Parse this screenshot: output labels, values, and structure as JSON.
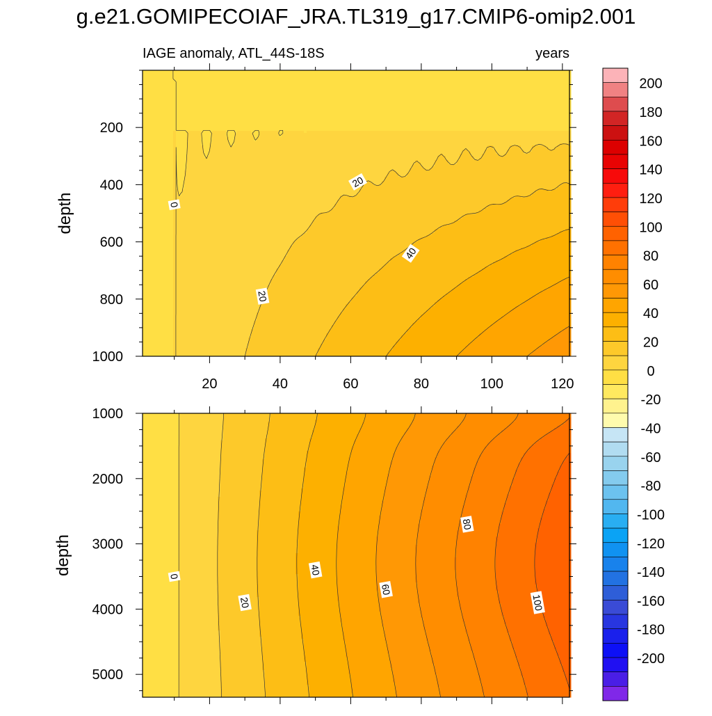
{
  "figure_title": "g.e21.GOMIPECOIAF_JRA.TL319_g17.CMIP6-omip2.001",
  "chart_data": [
    {
      "type": "contour",
      "panel": "upper",
      "left_label": "IAGE anomaly, ATL_44S-18S",
      "right_label": "years",
      "ylabel": "depth",
      "xlabel": "",
      "xlim": [
        1,
        122
      ],
      "ylim": [
        1000,
        0
      ],
      "y_inverted": true,
      "xticks": [
        20,
        40,
        60,
        80,
        100,
        120
      ],
      "yticks": [
        200,
        400,
        600,
        800,
        1000
      ],
      "contour_interval": 10,
      "contour_labels": [
        {
          "text": "0",
          "x": 10,
          "y": 470
        },
        {
          "text": "20",
          "x": 35,
          "y": 790
        },
        {
          "text": "20",
          "x": 62,
          "y": 390
        },
        {
          "text": "40",
          "x": 77,
          "y": 640
        }
      ]
    },
    {
      "type": "contour",
      "panel": "lower",
      "left_label": "",
      "right_label": "",
      "ylabel": "depth",
      "xlabel": "",
      "xlim": [
        1,
        122
      ],
      "ylim": [
        5350,
        1000
      ],
      "y_inverted": true,
      "xticks": [
        20,
        40,
        60,
        80,
        100,
        120
      ],
      "yticks": [
        1000,
        2000,
        3000,
        4000,
        5000
      ],
      "contour_interval": 10,
      "contour_labels": [
        {
          "text": "0",
          "x": 10,
          "y": 3500
        },
        {
          "text": "20",
          "x": 30,
          "y": 3900
        },
        {
          "text": "40",
          "x": 50,
          "y": 3400
        },
        {
          "text": "60",
          "x": 70,
          "y": 3700
        },
        {
          "text": "80",
          "x": 93,
          "y": 2700
        },
        {
          "text": "100",
          "x": 113,
          "y": 3900
        }
      ]
    }
  ],
  "colorbar": {
    "min": -210,
    "max": 210,
    "step": 10,
    "tick_labels": [
      "200",
      "180",
      "160",
      "140",
      "120",
      "100",
      "80",
      "60",
      "40",
      "20",
      "0",
      "-20",
      "-40",
      "-60",
      "-80",
      "-100",
      "-120",
      "-140",
      "-160",
      "-180",
      "-200"
    ],
    "colors_top_to_bottom": [
      "#fcb3b8",
      "#f08283",
      "#de4c4e",
      "#d22525",
      "#cc1111",
      "#dc0000",
      "#e80303",
      "#f70a0a",
      "#ff1e10",
      "#ff3d0a",
      "#ff4f05",
      "#ff6200",
      "#ff7100",
      "#ff8200",
      "#ff8d00",
      "#ff9805",
      "#ffa500",
      "#fdb000",
      "#fdbe15",
      "#fdc92a",
      "#fed53f",
      "#ffdf44",
      "#ffe95f",
      "#fff28e",
      "#fffbad",
      "#c6e5f5",
      "#b1dcf1",
      "#99d3ee",
      "#84cbee",
      "#6cc2ef",
      "#52b7ef",
      "#29aef2",
      "#0aa3f5",
      "#1092f1",
      "#1882ec",
      "#2272e2",
      "#2e5ed8",
      "#3a4bd6",
      "#2836e0",
      "#1a20ec",
      "#0d10f6",
      "#2010f2",
      "#4a1ee6",
      "#8028e8"
    ]
  }
}
